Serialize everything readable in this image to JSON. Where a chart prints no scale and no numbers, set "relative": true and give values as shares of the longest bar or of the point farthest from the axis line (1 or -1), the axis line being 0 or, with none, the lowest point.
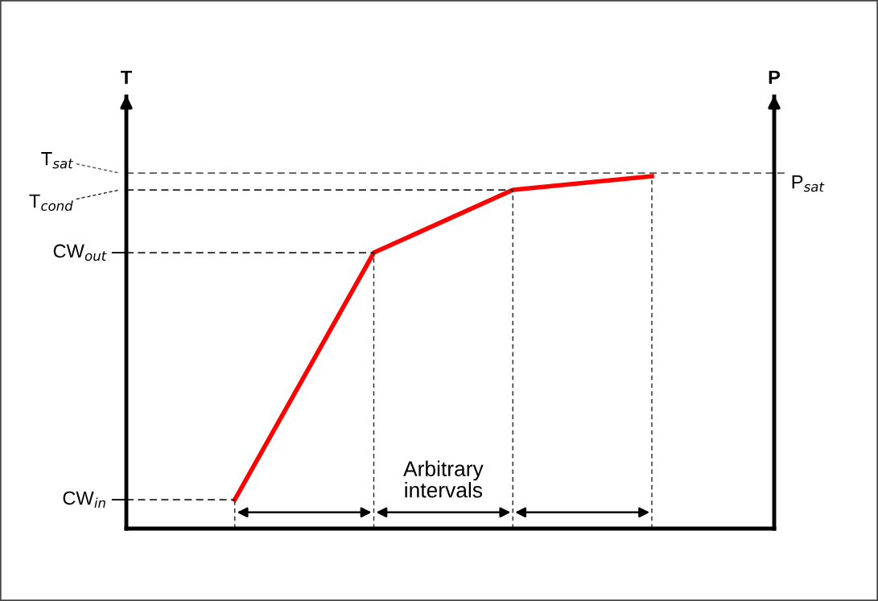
{
  "chart_data": {
    "type": "line",
    "relative": true,
    "ylabel": "T",
    "y2label": "P",
    "categories": [
      null,
      null,
      null,
      null
    ],
    "series": [
      {
        "color": "#ff0000",
        "values": [
          0.082,
          0.783,
          0.961,
          1
        ]
      }
    ],
    "ref_lines": [
      {
        "axis": "y",
        "value": 1.009,
        "label": "T$_{sat}$",
        "line_style": "dashed",
        "color": "#555555"
      },
      {
        "axis": "y",
        "value": 0.961,
        "label": "T$_{cond}$",
        "line_style": "dashed",
        "color": "#222222"
      },
      {
        "axis": "y",
        "value": 0.783,
        "label": "CW$_{out}$",
        "line_style": "dashed",
        "color": "#222222"
      },
      {
        "axis": "y",
        "value": 0.082,
        "label": "CW$_{in}$",
        "line_style": "dashed",
        "color": "#222222"
      }
    ],
    "annotations": [
      "Arbitrary intervals",
      "P$_{sat}$"
    ],
    "grid": "x",
    "legend": false,
    "marker": "none",
    "line_style": "solid"
  }
}
